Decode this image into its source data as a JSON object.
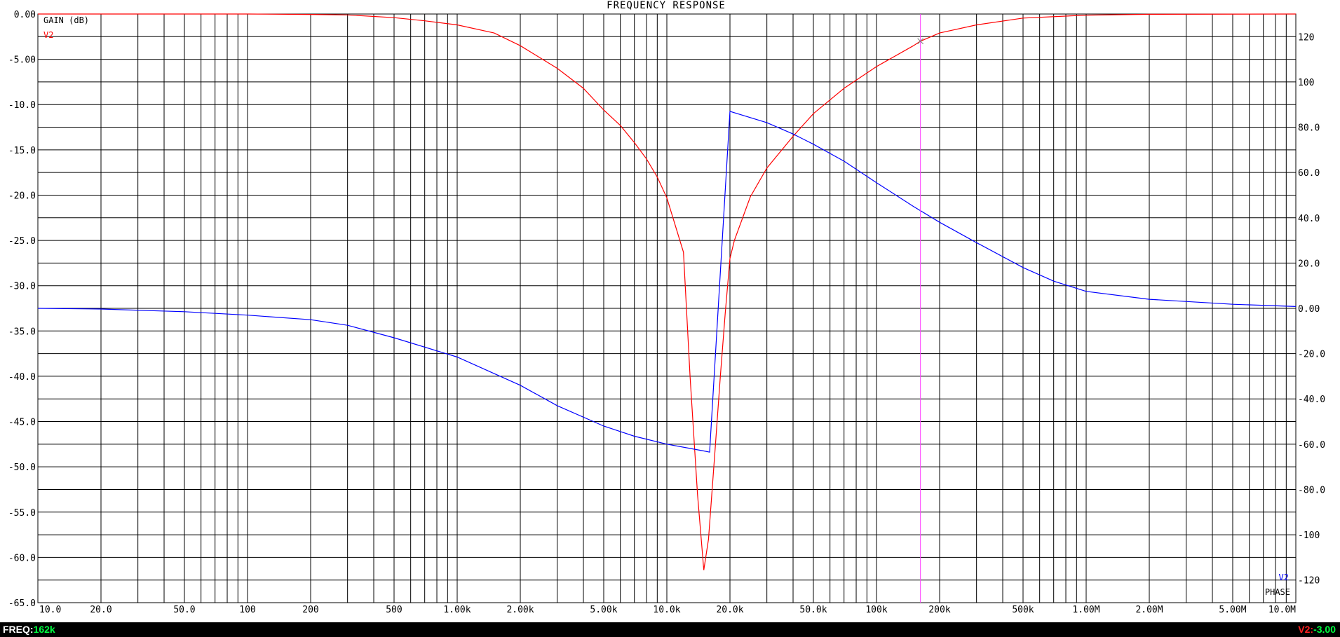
{
  "chart_data": {
    "type": "line",
    "title": "FREQUENCY RESPONSE",
    "x_scale": "log",
    "x_range": [
      10,
      10000000
    ],
    "x_ticks": [
      {
        "v": 10,
        "label": "10.0"
      },
      {
        "v": 20,
        "label": "20.0"
      },
      {
        "v": 50,
        "label": "50.0"
      },
      {
        "v": 100,
        "label": "100"
      },
      {
        "v": 200,
        "label": "200"
      },
      {
        "v": 500,
        "label": "500"
      },
      {
        "v": 1000,
        "label": "1.00k"
      },
      {
        "v": 2000,
        "label": "2.00k"
      },
      {
        "v": 5000,
        "label": "5.00k"
      },
      {
        "v": 10000,
        "label": "10.0k"
      },
      {
        "v": 20000,
        "label": "20.0k"
      },
      {
        "v": 50000,
        "label": "50.0k"
      },
      {
        "v": 100000,
        "label": "100k"
      },
      {
        "v": 200000,
        "label": "200k"
      },
      {
        "v": 500000,
        "label": "500k"
      },
      {
        "v": 1000000,
        "label": "1.00M"
      },
      {
        "v": 2000000,
        "label": "2.00M"
      },
      {
        "v": 5000000,
        "label": "5.00M"
      },
      {
        "v": 10000000,
        "label": "10.0M"
      }
    ],
    "x_gridlines": [
      10,
      20,
      30,
      40,
      50,
      60,
      70,
      80,
      90,
      100,
      200,
      300,
      400,
      500,
      600,
      700,
      800,
      900,
      1000,
      2000,
      3000,
      4000,
      5000,
      6000,
      7000,
      8000,
      9000,
      10000,
      20000,
      30000,
      40000,
      50000,
      60000,
      70000,
      80000,
      90000,
      100000,
      200000,
      300000,
      400000,
      500000,
      600000,
      700000,
      800000,
      900000,
      1000000,
      2000000,
      3000000,
      4000000,
      5000000,
      6000000,
      7000000,
      8000000,
      9000000,
      10000000
    ],
    "left_axis": {
      "label": "GAIN (dB)",
      "range": [
        -65,
        0
      ],
      "ticks": [
        {
          "v": 0,
          "label": "0.00"
        },
        {
          "v": -5,
          "label": "-5.00"
        },
        {
          "v": -10,
          "label": "-10.0"
        },
        {
          "v": -15,
          "label": "-15.0"
        },
        {
          "v": -20,
          "label": "-20.0"
        },
        {
          "v": -25,
          "label": "-25.0"
        },
        {
          "v": -30,
          "label": "-30.0"
        },
        {
          "v": -35,
          "label": "-35.0"
        },
        {
          "v": -40,
          "label": "-40.0"
        },
        {
          "v": -45,
          "label": "-45.0"
        },
        {
          "v": -50,
          "label": "-50.0"
        },
        {
          "v": -55,
          "label": "-55.0"
        },
        {
          "v": -60,
          "label": "-60.0"
        },
        {
          "v": -65,
          "label": "-65.0"
        }
      ]
    },
    "right_axis": {
      "label": "PHASE",
      "range": [
        -130,
        130
      ],
      "ticks": [
        {
          "v": 120,
          "label": "120"
        },
        {
          "v": 100,
          "label": "100"
        },
        {
          "v": 80,
          "label": "80.0"
        },
        {
          "v": 60,
          "label": "60.0"
        },
        {
          "v": 40,
          "label": "40.0"
        },
        {
          "v": 20,
          "label": "20.0"
        },
        {
          "v": 0,
          "label": "0.00"
        },
        {
          "v": -20,
          "label": "-20.0"
        },
        {
          "v": -40,
          "label": "-40.0"
        },
        {
          "v": -60,
          "label": "-60.0"
        },
        {
          "v": -80,
          "label": "-80.0"
        },
        {
          "v": -100,
          "label": "-100"
        },
        {
          "v": -120,
          "label": "-120"
        }
      ]
    },
    "grid": true,
    "series": [
      {
        "name": "V2",
        "axis": "left",
        "color": "#ff0000",
        "points": [
          [
            10,
            0
          ],
          [
            100,
            0
          ],
          [
            200,
            -0.05
          ],
          [
            300,
            -0.1
          ],
          [
            500,
            -0.4
          ],
          [
            700,
            -0.75
          ],
          [
            1000,
            -1.2
          ],
          [
            1500,
            -2.1
          ],
          [
            2000,
            -3.5
          ],
          [
            3000,
            -6.0
          ],
          [
            4000,
            -8.2
          ],
          [
            5000,
            -10.6
          ],
          [
            6000,
            -12.3
          ],
          [
            7000,
            -14.2
          ],
          [
            8000,
            -16.0
          ],
          [
            9000,
            -18.0
          ],
          [
            10000,
            -20.3
          ],
          [
            12000,
            -26.3
          ],
          [
            12900,
            -40.0
          ],
          [
            14000,
            -53.0
          ],
          [
            15000,
            -61.4
          ],
          [
            15800,
            -58.0
          ],
          [
            17000,
            -48.0
          ],
          [
            18000,
            -40.0
          ],
          [
            19000,
            -33.0
          ],
          [
            20000,
            -27.0
          ],
          [
            21000,
            -25.0
          ],
          [
            25000,
            -20.2
          ],
          [
            30000,
            -17.0
          ],
          [
            40000,
            -13.5
          ],
          [
            50000,
            -11.0
          ],
          [
            70000,
            -8.2
          ],
          [
            100000,
            -5.8
          ],
          [
            150000,
            -3.5
          ],
          [
            162000,
            -3.0
          ],
          [
            200000,
            -2.1
          ],
          [
            300000,
            -1.2
          ],
          [
            500000,
            -0.45
          ],
          [
            1000000,
            -0.12
          ],
          [
            2000000,
            -0.03
          ],
          [
            10000000,
            0
          ]
        ]
      },
      {
        "name": "V2",
        "axis": "right",
        "color": "#0000ff",
        "points": [
          [
            10,
            0
          ],
          [
            20,
            -0.3
          ],
          [
            50,
            -1.5
          ],
          [
            100,
            -3.0
          ],
          [
            200,
            -5.0
          ],
          [
            300,
            -7.5
          ],
          [
            500,
            -13.0
          ],
          [
            1000,
            -21.5
          ],
          [
            2000,
            -34.0
          ],
          [
            3000,
            -43.0
          ],
          [
            5000,
            -52.0
          ],
          [
            7000,
            -56.5
          ],
          [
            10000,
            -60.0
          ],
          [
            15000,
            -63.0
          ],
          [
            16000,
            -63.5
          ],
          [
            20000,
            87.0
          ],
          [
            30000,
            82.0
          ],
          [
            40000,
            77.0
          ],
          [
            50000,
            72.5
          ],
          [
            70000,
            65.0
          ],
          [
            100000,
            55.5
          ],
          [
            150000,
            45.0
          ],
          [
            200000,
            38.0
          ],
          [
            300000,
            29.0
          ],
          [
            500000,
            18.0
          ],
          [
            700000,
            12.0
          ],
          [
            1000000,
            7.5
          ],
          [
            2000000,
            4.0
          ],
          [
            5000000,
            1.8
          ],
          [
            10000000,
            0.8
          ]
        ]
      }
    ],
    "legend_top_left": "V2",
    "legend_bottom_right": "V2",
    "cursor": {
      "x": 162000,
      "marker_y": -3.0,
      "color": "#ff40ff"
    }
  },
  "status": {
    "freq_label": "FREQ:",
    "freq_value": "162k",
    "v2_label": "V2:",
    "v2_value": "-3.00"
  }
}
